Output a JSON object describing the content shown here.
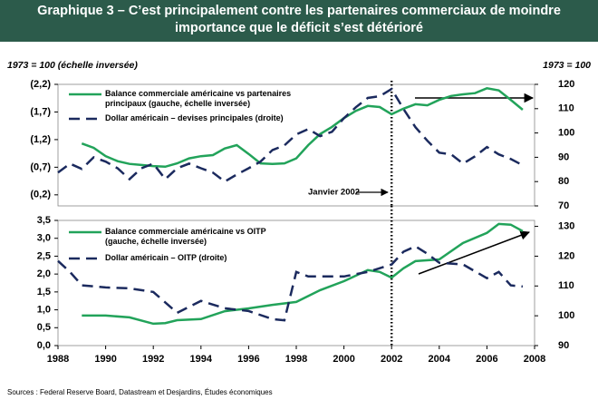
{
  "title": "Graphique 3 – C’est principalement contre les partenaires commerciaux de moindre importance que le déficit s’est détérioré",
  "source": "Sources : Federal Reserve Board, Datastream et Desjardins, Études économiques",
  "chart_data": [
    {
      "type": "line",
      "ylabel": "1973 = 100 (échelle inversée)",
      "y2label": "1973 = 100",
      "xlim": [
        1988,
        2008
      ],
      "ylim": [
        0,
        -2.2
      ],
      "y2lim": [
        70,
        120
      ],
      "yticks": [
        {
          "value": -2.2,
          "label": "(2,2)"
        },
        {
          "value": -1.7,
          "label": "(1,7)"
        },
        {
          "value": -1.2,
          "label": "(1,2)"
        },
        {
          "value": -0.7,
          "label": "(0,7)"
        },
        {
          "value": -0.2,
          "label": "(0,2)"
        }
      ],
      "y2ticks": [
        70,
        80,
        90,
        100,
        110,
        120
      ],
      "vline": 2002,
      "annotation": "Janvier 2002",
      "series": [
        {
          "name": "Balance commerciale américaine vs partenaires principaux (gauche, échelle inversée)",
          "color": "#22a35a",
          "dash": false,
          "x": [
            1989,
            1989.5,
            1990,
            1990.5,
            1991,
            1991.5,
            1992,
            1992.5,
            1993,
            1993.5,
            1994,
            1994.5,
            1995,
            1995.5,
            1996,
            1996.5,
            1997,
            1997.5,
            1998,
            1998.5,
            1999,
            1999.5,
            2000,
            2000.5,
            2001,
            2001.5,
            2002,
            2002.5,
            2003,
            2003.5,
            2004,
            2004.5,
            2005,
            2005.5,
            2006,
            2006.5,
            2007,
            2007.5
          ],
          "values": [
            -1.13,
            -1.05,
            -0.9,
            -0.81,
            -0.76,
            -0.74,
            -0.72,
            -0.71,
            -0.77,
            -0.86,
            -0.9,
            -0.92,
            -1.04,
            -1.1,
            -0.94,
            -0.77,
            -0.76,
            -0.77,
            -0.86,
            -1.1,
            -1.3,
            -1.43,
            -1.59,
            -1.72,
            -1.81,
            -1.79,
            -1.66,
            -1.76,
            -1.84,
            -1.82,
            -1.92,
            -1.99,
            -2.02,
            -2.04,
            -2.13,
            -2.09,
            -1.92,
            -1.74
          ]
        },
        {
          "name": "Dollar américain – devises principales (droite)",
          "color": "#1b2a5e",
          "dash": true,
          "axis": "y2",
          "x": [
            1988,
            1988.5,
            1989,
            1989.5,
            1990,
            1990.5,
            1991,
            1991.5,
            1992,
            1992.5,
            1993,
            1993.5,
            1994,
            1994.5,
            1995,
            1995.5,
            1996,
            1996.5,
            1997,
            1997.5,
            1998,
            1998.5,
            1999,
            1999.5,
            2000,
            2000.5,
            2001,
            2001.5,
            2002,
            2002.5,
            2003,
            2003.5,
            2004,
            2004.5,
            2005,
            2005.5,
            2006,
            2006.5,
            2007,
            2007.5
          ],
          "values": [
            83.7,
            87.4,
            85.2,
            90,
            88.2,
            85.5,
            81,
            85.5,
            87.4,
            81,
            85.5,
            87.4,
            85.5,
            83.7,
            80,
            82.9,
            85.5,
            88.2,
            93,
            94.9,
            99.4,
            101.6,
            98.7,
            100.5,
            106.1,
            110.6,
            114.4,
            115.1,
            118.1,
            109.9,
            102.4,
            96.8,
            91.9,
            91.2,
            87.4,
            90.4,
            94.2,
            91.2,
            89.3,
            86.7
          ]
        }
      ]
    },
    {
      "type": "line",
      "xlim": [
        1988,
        2008
      ],
      "ylim": [
        0,
        3.5
      ],
      "y2lim": [
        90,
        132
      ],
      "xticks": [
        1988,
        1990,
        1992,
        1994,
        1996,
        1998,
        2000,
        2002,
        2004,
        2006,
        2008
      ],
      "yticks": [
        {
          "value": 0,
          "label": "0,0"
        },
        {
          "value": 0.5,
          "label": "0,5"
        },
        {
          "value": 1,
          "label": "1,0"
        },
        {
          "value": 1.5,
          "label": "1,5"
        },
        {
          "value": 2,
          "label": "2,0"
        },
        {
          "value": 2.5,
          "label": "2,5"
        },
        {
          "value": 3,
          "label": "3,0"
        },
        {
          "value": 3.5,
          "label": "3,5"
        }
      ],
      "y2ticks": [
        90,
        100,
        110,
        120,
        130
      ],
      "vline": 2002,
      "series": [
        {
          "name": "Balance commerciale américaine vs OITP (gauche, échelle inversée)",
          "color": "#22a35a",
          "dash": false,
          "x": [
            1989,
            1990,
            1991,
            1992,
            1992.5,
            1993,
            1994,
            1995,
            1996,
            1997,
            1998,
            1999,
            2000,
            2001,
            2001.5,
            2002,
            2002.5,
            2003,
            2004,
            2005,
            2006,
            2006.5,
            2007,
            2007.5
          ],
          "values": [
            0.84,
            0.84,
            0.79,
            0.61,
            0.63,
            0.71,
            0.74,
            0.96,
            1.04,
            1.14,
            1.22,
            1.55,
            1.8,
            2.11,
            2.06,
            1.9,
            2.16,
            2.36,
            2.41,
            2.87,
            3.15,
            3.4,
            3.38,
            3.2
          ]
        },
        {
          "name": "Dollar américain – OITP (droite)",
          "color": "#1b2a5e",
          "dash": true,
          "axis": "y2",
          "x": [
            1988,
            1988.5,
            1989,
            1990,
            1991,
            1992,
            1993,
            1994,
            1995,
            1996,
            1997,
            1997.5,
            1998,
            1998.5,
            1999,
            2000,
            2001,
            2002,
            2002.5,
            2003,
            2003.5,
            2004,
            2005,
            2006,
            2006.5,
            2007,
            2007.5
          ],
          "values": [
            118.4,
            114.7,
            110.2,
            109.5,
            109.2,
            108,
            101,
            105,
            102.5,
            101.6,
            98.9,
            98.5,
            114.7,
            113.2,
            113.2,
            113.2,
            114.7,
            117.2,
            121.5,
            123.3,
            120.8,
            117.8,
            117.2,
            112.6,
            114.7,
            110.2,
            109.8
          ]
        }
      ]
    }
  ]
}
